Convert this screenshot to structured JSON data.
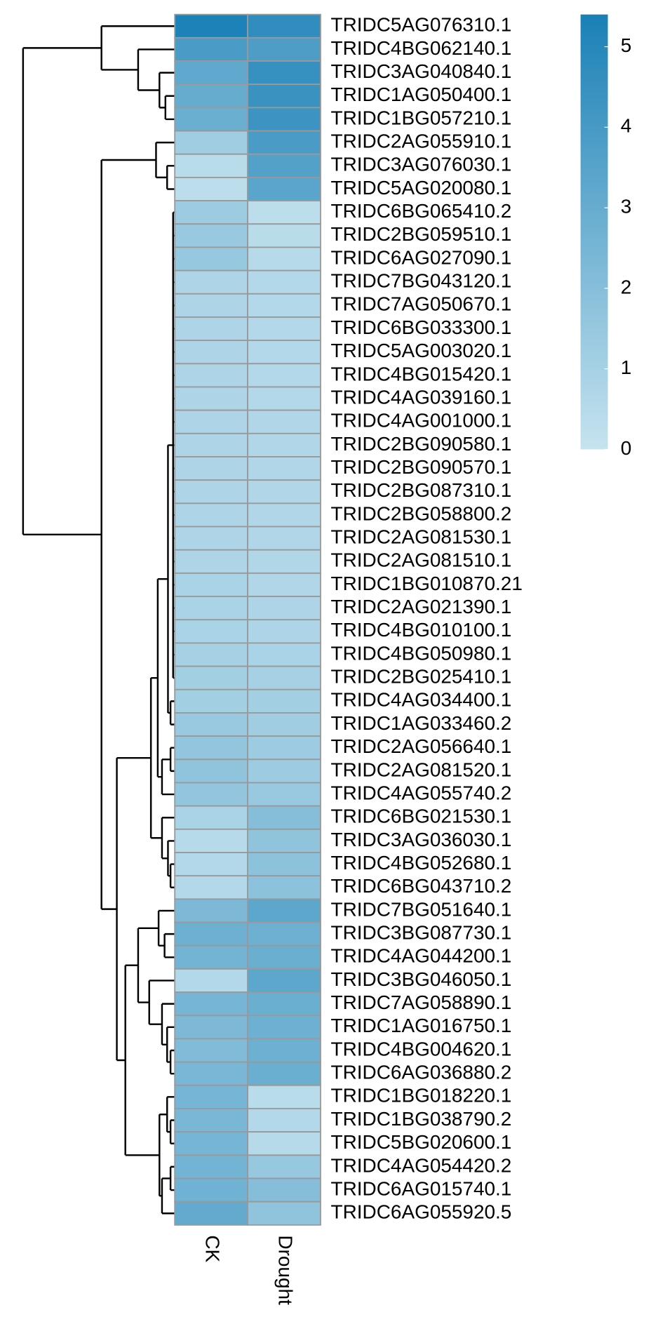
{
  "chart_data": {
    "type": "heatmap",
    "rows": [
      "TRIDC5AG076310.1",
      "TRIDC4BG062140.1",
      "TRIDC3AG040840.1",
      "TRIDC1AG050400.1",
      "TRIDC1BG057210.1",
      "TRIDC2AG055910.1",
      "TRIDC3AG076030.1",
      "TRIDC5AG020080.1",
      "TRIDC6BG065410.2",
      "TRIDC2BG059510.1",
      "TRIDC6AG027090.1",
      "TRIDC7BG043120.1",
      "TRIDC7AG050670.1",
      "TRIDC6BG033300.1",
      "TRIDC5AG003020.1",
      "TRIDC4BG015420.1",
      "TRIDC4AG039160.1",
      "TRIDC4AG001000.1",
      "TRIDC2BG090580.1",
      "TRIDC2BG090570.1",
      "TRIDC2BG087310.1",
      "TRIDC2BG058800.2",
      "TRIDC2AG081530.1",
      "TRIDC2AG081510.1",
      "TRIDC1BG010870.21",
      "TRIDC2AG021390.1",
      "TRIDC4BG010100.1",
      "TRIDC4BG050980.1",
      "TRIDC2BG025410.1",
      "TRIDC4AG034400.1",
      "TRIDC1AG033460.2",
      "TRIDC2AG056640.1",
      "TRIDC2AG081520.1",
      "TRIDC4AG055740.2",
      "TRIDC6BG021530.1",
      "TRIDC3AG036030.1",
      "TRIDC4BG052680.1",
      "TRIDC6BG043710.2",
      "TRIDC7BG051640.1",
      "TRIDC3BG087730.1",
      "TRIDC4AG044200.1",
      "TRIDC3BG046050.1",
      "TRIDC7AG058890.1",
      "TRIDC1AG016750.1",
      "TRIDC4BG004620.1",
      "TRIDC6AG036880.2",
      "TRIDC1BG018220.1",
      "TRIDC1BG038790.2",
      "TRIDC5BG020600.1",
      "TRIDC4AG054420.2",
      "TRIDC6AG015740.1",
      "TRIDC6AG055920.5"
    ],
    "columns": [
      "CK",
      "Drought"
    ],
    "values": [
      [
        5.3,
        4.7
      ],
      [
        3.9,
        3.8
      ],
      [
        3.2,
        4.5
      ],
      [
        3.0,
        4.4
      ],
      [
        2.9,
        4.3
      ],
      [
        1.2,
        3.9
      ],
      [
        0.4,
        3.6
      ],
      [
        0.3,
        3.4
      ],
      [
        1.3,
        0.3
      ],
      [
        1.4,
        0.4
      ],
      [
        1.5,
        0.5
      ],
      [
        0.8,
        0.6
      ],
      [
        0.8,
        0.6
      ],
      [
        0.8,
        0.6
      ],
      [
        0.8,
        0.6
      ],
      [
        0.8,
        0.6
      ],
      [
        0.8,
        0.6
      ],
      [
        0.8,
        0.7
      ],
      [
        0.8,
        0.7
      ],
      [
        0.8,
        0.7
      ],
      [
        0.8,
        0.7
      ],
      [
        0.8,
        0.7
      ],
      [
        0.8,
        0.7
      ],
      [
        0.8,
        0.7
      ],
      [
        0.9,
        0.7
      ],
      [
        0.9,
        0.8
      ],
      [
        0.9,
        0.8
      ],
      [
        1.0,
        0.9
      ],
      [
        1.1,
        1.0
      ],
      [
        1.1,
        1.1
      ],
      [
        1.4,
        1.2
      ],
      [
        1.6,
        1.3
      ],
      [
        1.7,
        1.3
      ],
      [
        1.6,
        1.4
      ],
      [
        0.9,
        2.0
      ],
      [
        0.5,
        1.7
      ],
      [
        0.6,
        1.8
      ],
      [
        0.6,
        1.8
      ],
      [
        2.3,
        3.3
      ],
      [
        2.8,
        2.8
      ],
      [
        2.6,
        2.9
      ],
      [
        0.6,
        3.3
      ],
      [
        2.5,
        2.9
      ],
      [
        2.3,
        2.8
      ],
      [
        2.2,
        2.8
      ],
      [
        2.4,
        2.9
      ],
      [
        2.5,
        0.4
      ],
      [
        2.4,
        0.6
      ],
      [
        2.5,
        0.5
      ],
      [
        2.6,
        1.5
      ],
      [
        2.7,
        2.0
      ],
      [
        3.1,
        1.7
      ]
    ],
    "colorbar": {
      "lim": [
        0,
        5.4
      ],
      "ticks": [
        0,
        1,
        2,
        3,
        4,
        5
      ]
    },
    "colors": {
      "low": "#c6e3ef",
      "high": "#1a80b6",
      "border": "#999999"
    }
  }
}
